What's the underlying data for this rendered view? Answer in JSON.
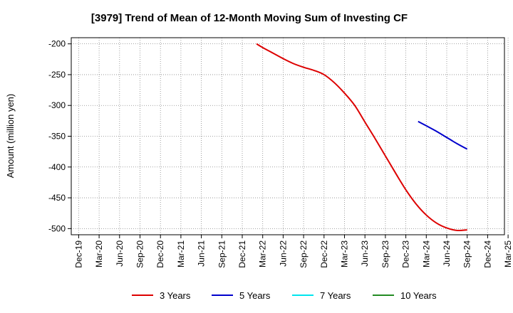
{
  "chart_data": {
    "type": "line",
    "title": "[3979]  Trend of Mean of 12-Month Moving Sum of Investing CF",
    "xlabel": "",
    "ylabel": "Amount (million yen)",
    "ylim": [
      -510,
      -190
    ],
    "yticks": [
      -200,
      -250,
      -300,
      -350,
      -400,
      -450,
      -500
    ],
    "x_categories": [
      "Dec-19",
      "Mar-20",
      "Jun-20",
      "Sep-20",
      "Dec-20",
      "Mar-21",
      "Jun-21",
      "Sep-21",
      "Dec-21",
      "Mar-22",
      "Jun-22",
      "Sep-22",
      "Dec-22",
      "Mar-23",
      "Jun-23",
      "Sep-23",
      "Dec-23",
      "Mar-24",
      "Jun-24",
      "Sep-24",
      "Dec-24",
      "Mar-25"
    ],
    "grid": true,
    "legend_position": "bottom",
    "series": [
      {
        "name": "3 Years",
        "color": "#dd0000",
        "points": [
          [
            8.7,
            -200
          ],
          [
            9,
            -206
          ],
          [
            9.5,
            -215
          ],
          [
            10,
            -224
          ],
          [
            10.5,
            -232
          ],
          [
            11,
            -238
          ],
          [
            11.5,
            -243
          ],
          [
            12,
            -250
          ],
          [
            12.5,
            -263
          ],
          [
            13,
            -280
          ],
          [
            13.5,
            -300
          ],
          [
            14,
            -327
          ],
          [
            14.5,
            -354
          ],
          [
            15,
            -382
          ],
          [
            15.5,
            -410
          ],
          [
            16,
            -437
          ],
          [
            16.5,
            -460
          ],
          [
            17,
            -478
          ],
          [
            17.5,
            -491
          ],
          [
            18,
            -499
          ],
          [
            18.5,
            -503
          ],
          [
            19,
            -502
          ]
        ]
      },
      {
        "name": "5 Years",
        "color": "#0000cc",
        "points": [
          [
            16.6,
            -326
          ],
          [
            17,
            -333
          ],
          [
            17.5,
            -342
          ],
          [
            18,
            -352
          ],
          [
            18.5,
            -362
          ],
          [
            19,
            -371
          ]
        ]
      },
      {
        "name": "7 Years",
        "color": "#00e5ee",
        "points": []
      },
      {
        "name": "10 Years",
        "color": "#228b22",
        "points": []
      }
    ]
  }
}
